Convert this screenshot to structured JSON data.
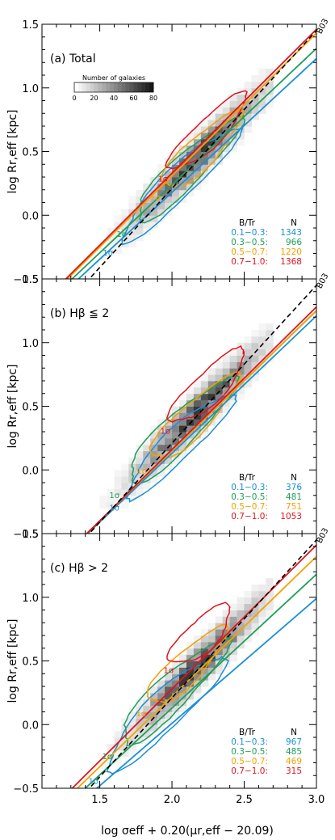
{
  "figure": {
    "xlabel": "log σeff + 0.20(μr,eff − 20.09)",
    "ylabel": "log Rr,eff [kpc]",
    "xticks": [
      "1.5",
      "2.0",
      "2.5",
      "3.0"
    ],
    "yticks": [
      "−0.5",
      "0.0",
      "0.5",
      "1.0",
      "1.5"
    ],
    "colors": {
      "c01": "#1a8fd6",
      "c03": "#1e9e5a",
      "c05": "#f5a000",
      "c07": "#e0141e",
      "b03": "#000000"
    },
    "reference_label": "B03",
    "sigma_label": "1σ",
    "colorbar": {
      "title": "Number of galaxies",
      "ticks": [
        "0",
        "20",
        "40",
        "60",
        "80"
      ]
    }
  },
  "chart_data": [
    {
      "type": "scatter",
      "panel_label": "(a)  Total",
      "xlim": [
        1.1,
        3.0
      ],
      "ylim": [
        -0.5,
        1.5
      ],
      "legend": {
        "header_bt": "B/Tr",
        "header_n": "N",
        "entries": [
          {
            "name": "0.1−0.3:",
            "n": "1343"
          },
          {
            "name": "0.3−0.5:",
            "n": "966"
          },
          {
            "name": "0.5−0.7:",
            "n": "1220"
          },
          {
            "name": "0.7−1.0:",
            "n": "1368"
          }
        ]
      },
      "fits": [
        {
          "name": "0.1−0.3",
          "slope": 1.05,
          "intercept": -1.92
        },
        {
          "name": "0.3−0.5",
          "slope": 1.07,
          "intercept": -1.9
        },
        {
          "name": "0.5−0.7",
          "slope": 1.12,
          "intercept": -1.93
        },
        {
          "name": "0.7−1.0",
          "slope": 1.13,
          "intercept": -1.93
        },
        {
          "name": "B03",
          "slope": 1.24,
          "intercept": -2.27
        }
      ],
      "contours": [
        {
          "name": "0.1−0.3",
          "cx": 2.05,
          "cy": 0.25,
          "a": 0.6,
          "b": 0.1
        },
        {
          "name": "0.3−0.5",
          "cx": 2.1,
          "cy": 0.35,
          "a": 0.55,
          "b": 0.1
        },
        {
          "name": "0.5−0.7",
          "cx": 2.2,
          "cy": 0.5,
          "a": 0.4,
          "b": 0.1
        },
        {
          "name": "0.7−1.0",
          "cx": 2.25,
          "cy": 0.65,
          "a": 0.4,
          "b": 0.09
        }
      ]
    },
    {
      "type": "scatter",
      "panel_label": "(b)  Hβ ≦ 2",
      "xlim": [
        1.1,
        3.0
      ],
      "ylim": [
        -0.5,
        1.5
      ],
      "legend": {
        "header_bt": "B/Tr",
        "header_n": "N",
        "entries": [
          {
            "name": "0.1−0.3:",
            "n": "376"
          },
          {
            "name": "0.3−0.5:",
            "n": "481"
          },
          {
            "name": "0.5−0.7:",
            "n": "751"
          },
          {
            "name": "0.7−1.0:",
            "n": "1053"
          }
        ]
      },
      "fits": [
        {
          "name": "0.1−0.3",
          "slope": 1.08,
          "intercept": -2.03
        },
        {
          "name": "0.3−0.5",
          "slope": 1.1,
          "intercept": -2.05
        },
        {
          "name": "0.5−0.7",
          "slope": 1.1,
          "intercept": -2.05
        },
        {
          "name": "0.7−1.0",
          "slope": 1.12,
          "intercept": -2.08
        },
        {
          "name": "B03",
          "slope": 1.24,
          "intercept": -2.27
        }
      ],
      "contours": [
        {
          "name": "0.1−0.3",
          "cx": 2.05,
          "cy": 0.2,
          "a": 0.55,
          "b": 0.1
        },
        {
          "name": "0.3−0.5",
          "cx": 2.05,
          "cy": 0.3,
          "a": 0.55,
          "b": 0.11
        },
        {
          "name": "0.5−0.7",
          "cx": 2.15,
          "cy": 0.4,
          "a": 0.45,
          "b": 0.1
        },
        {
          "name": "0.7−1.0",
          "cx": 2.25,
          "cy": 0.65,
          "a": 0.38,
          "b": 0.1
        }
      ]
    },
    {
      "type": "scatter",
      "panel_label": "(c)  Hβ > 2",
      "xlim": [
        1.1,
        3.0
      ],
      "ylim": [
        -0.5,
        1.5
      ],
      "legend": {
        "header_bt": "B/Tr",
        "header_n": "N",
        "entries": [
          {
            "name": "0.1−0.3:",
            "n": "967"
          },
          {
            "name": "0.3−0.5:",
            "n": "485"
          },
          {
            "name": "0.5−0.7:",
            "n": "469"
          },
          {
            "name": "0.7−1.0:",
            "n": "315"
          }
        ]
      },
      "fits": [
        {
          "name": "0.1−0.3",
          "slope": 0.98,
          "intercept": -1.95
        },
        {
          "name": "0.3−0.5",
          "slope": 1.05,
          "intercept": -1.97
        },
        {
          "name": "0.5−0.7",
          "slope": 1.1,
          "intercept": -1.98
        },
        {
          "name": "0.7−1.0",
          "slope": 1.13,
          "intercept": -1.98
        },
        {
          "name": "B03",
          "slope": 1.24,
          "intercept": -2.27
        }
      ],
      "contours": [
        {
          "name": "0.1−0.3",
          "cx": 1.95,
          "cy": 0.1,
          "a": 0.6,
          "b": 0.12
        },
        {
          "name": "0.3−0.5",
          "cx": 2.0,
          "cy": 0.25,
          "a": 0.55,
          "b": 0.11
        },
        {
          "name": "0.5−0.7",
          "cx": 2.1,
          "cy": 0.45,
          "a": 0.4,
          "b": 0.1
        },
        {
          "name": "0.7−1.0",
          "cx": 2.2,
          "cy": 0.7,
          "a": 0.3,
          "b": 0.1
        }
      ]
    }
  ]
}
